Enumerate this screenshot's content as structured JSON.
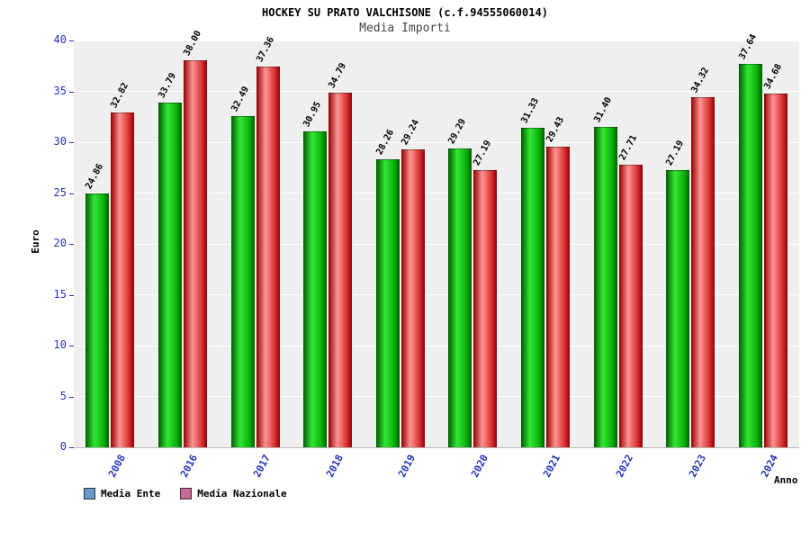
{
  "header": {
    "title": "HOCKEY SU PRATO VALCHISONE (c.f.94555060014)",
    "subtitle": "Media Importi"
  },
  "axes": {
    "y_label": "Euro",
    "x_label": "Anno",
    "y_ticks": [
      0,
      5,
      10,
      15,
      20,
      25,
      30,
      35,
      40
    ]
  },
  "legend": {
    "items": [
      {
        "label": "Media Ente",
        "swatch_color": "#6699cc"
      },
      {
        "label": "Media Nazionale",
        "swatch_color": "#cc6699"
      }
    ]
  },
  "colors": {
    "axis_text": "#2233bb",
    "subtitle_text": "#444444",
    "plot_bg": "#efefef",
    "grid": "#ffffff",
    "bar_ente_gradient": [
      "#015c01",
      "#33e633",
      "#0ab00a"
    ],
    "bar_nazionale_gradient": [
      "#8f0000",
      "#ff9494",
      "#d93030"
    ]
  },
  "chart_data": {
    "type": "bar",
    "title": "HOCKEY SU PRATO VALCHISONE (c.f.94555060014)",
    "subtitle": "Media Importi",
    "xlabel": "Anno",
    "ylabel": "Euro",
    "ylim": [
      0,
      40
    ],
    "grid": true,
    "legend_position": "bottom",
    "categories": [
      "2008",
      "2016",
      "2017",
      "2018",
      "2019",
      "2020",
      "2021",
      "2022",
      "2023",
      "2024"
    ],
    "series": [
      {
        "name": "Media Ente",
        "values": [
          24.86,
          33.79,
          32.49,
          30.95,
          28.26,
          29.29,
          31.33,
          31.4,
          27.19,
          37.64
        ],
        "labels": [
          "24.86",
          "33.79",
          "32.49",
          "30.95",
          "28.26",
          "29.29",
          "31.33",
          "31.40",
          "27.19",
          "37.64"
        ]
      },
      {
        "name": "Media Nazionale",
        "values": [
          32.82,
          38.0,
          37.36,
          34.79,
          29.24,
          27.19,
          29.43,
          27.71,
          34.32,
          34.68
        ],
        "labels": [
          "32.82",
          "38.00",
          "37.36",
          "34.79",
          "29.24",
          "27.19",
          "29.43",
          "27.71",
          "34.32",
          "34.68"
        ]
      }
    ]
  }
}
